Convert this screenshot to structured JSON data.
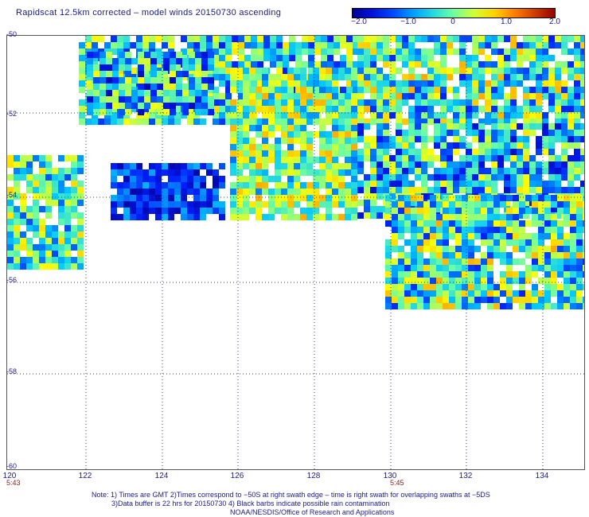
{
  "title": "Rapidscat 12.5km corrected – model winds 20150730 ascending",
  "colorbar": {
    "labels": [
      "−2.0",
      "−1.0",
      "0",
      "1.0",
      "2.0"
    ],
    "min": -2.0,
    "max": 2.0
  },
  "map": {
    "lon_range": [
      120,
      135
    ],
    "lat_range": [
      -60,
      -50
    ],
    "lat_labels": [
      "-50",
      "-52",
      "-54",
      "-56",
      "-58",
      "-60"
    ],
    "lon_labels": [
      "120",
      "122",
      "124",
      "126",
      "128",
      "130",
      "132",
      "134"
    ],
    "time_labels": [
      "5:43",
      "5:45"
    ],
    "grid": true
  },
  "notes": {
    "line1": "Note: 1) Times are GMT 2)Times correspond to −50S at right swath edge – time is right swath for overlapping swaths at −5DS",
    "line2": "3)Data buffer is 22 hrs for 20150730 4) Black barbs indicate possible rain contamination",
    "line3": "NOAA/NESDIS/Office of Research and Applications"
  }
}
